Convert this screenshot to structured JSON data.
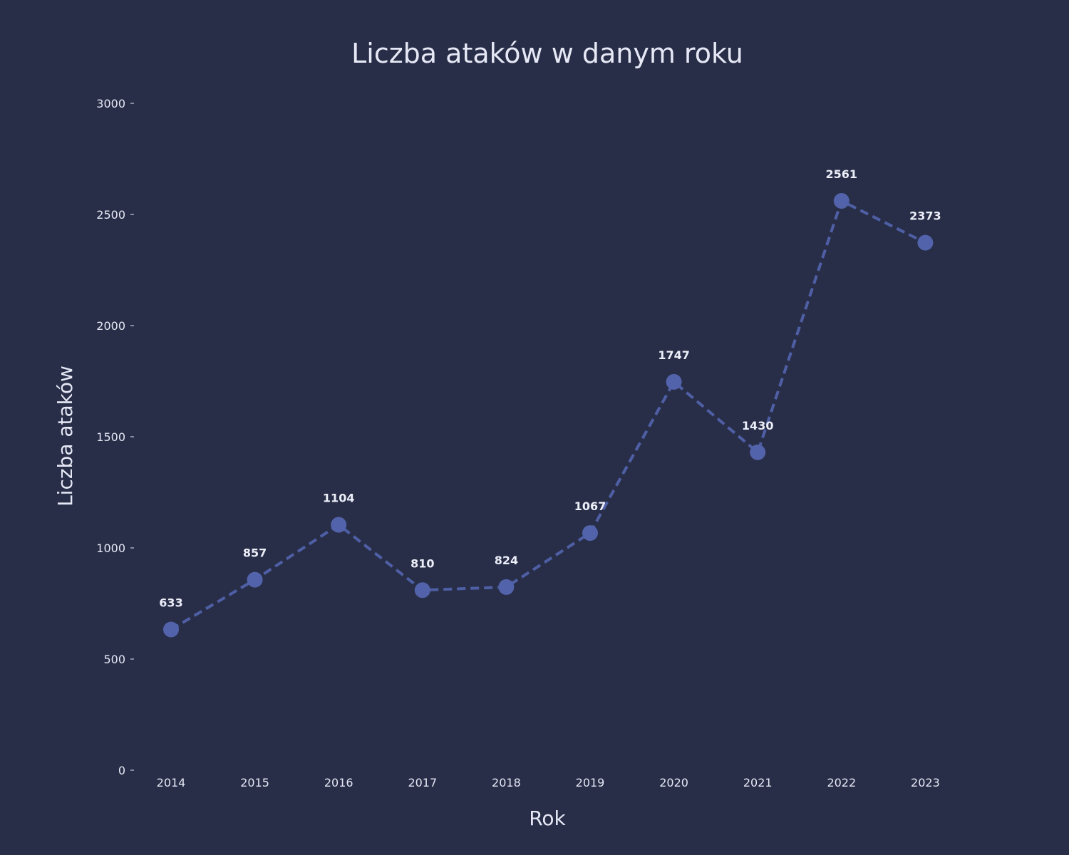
{
  "chart_data": {
    "type": "line",
    "title": "Liczba ataków w danym roku",
    "xlabel": "Rok",
    "ylabel": "Liczba ataków",
    "categories": [
      "2014",
      "2015",
      "2016",
      "2017",
      "2018",
      "2019",
      "2020",
      "2021",
      "2022",
      "2023"
    ],
    "series": [
      {
        "values": [
          633,
          857,
          1104,
          810,
          824,
          1067,
          1747,
          1430,
          2561,
          2373
        ]
      }
    ],
    "ylim": [
      0,
      3000
    ],
    "yticks": [
      0,
      500,
      1000,
      1500,
      2000,
      2500,
      3000
    ],
    "grid": false,
    "line_style": "dashed",
    "markers": true,
    "data_labels": true,
    "colors": {
      "background": "#282e48",
      "line": "#4f5fa5",
      "marker": "#5363ab",
      "text": "#e6e8f5"
    }
  }
}
